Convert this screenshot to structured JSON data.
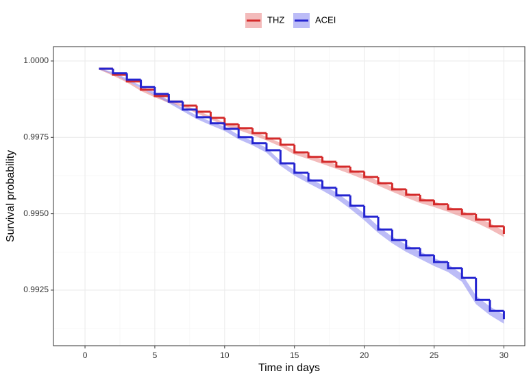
{
  "chart_data": {
    "type": "step",
    "x_label": "Time in days",
    "y_label": "Survival probability",
    "x": [
      1,
      2,
      3,
      4,
      5,
      6,
      7,
      8,
      9,
      10,
      11,
      12,
      13,
      14,
      15,
      16,
      17,
      18,
      19,
      20,
      21,
      22,
      23,
      24,
      25,
      26,
      27,
      28,
      29,
      30
    ],
    "series": [
      {
        "name": "THZ",
        "color": "#d42a2a",
        "band_color": "#e87878",
        "values": [
          0.99975,
          0.99955,
          0.99933,
          0.99906,
          0.99885,
          0.99867,
          0.99854,
          0.99834,
          0.99814,
          0.99793,
          0.9978,
          0.99764,
          0.99746,
          0.99726,
          0.99701,
          0.99686,
          0.9967,
          0.99654,
          0.99638,
          0.9962,
          0.996,
          0.9958,
          0.99562,
          0.99544,
          0.99531,
          0.99515,
          0.99499,
          0.99481,
          0.99459,
          0.99434
        ],
        "upper": [
          0.99978,
          0.99958,
          0.99937,
          0.9991,
          0.99889,
          0.99871,
          0.99859,
          0.99839,
          0.99819,
          0.99798,
          0.99786,
          0.9977,
          0.99752,
          0.99732,
          0.99708,
          0.99693,
          0.99677,
          0.99661,
          0.99646,
          0.99628,
          0.99608,
          0.99588,
          0.99571,
          0.99553,
          0.9954,
          0.99524,
          0.99509,
          0.99491,
          0.99469,
          0.99444
        ],
        "lower": [
          0.99972,
          0.99952,
          0.9993,
          0.99902,
          0.99881,
          0.99863,
          0.9985,
          0.99829,
          0.99809,
          0.99788,
          0.99774,
          0.99758,
          0.9974,
          0.9972,
          0.99694,
          0.99679,
          0.99663,
          0.99647,
          0.9963,
          0.99612,
          0.99592,
          0.99572,
          0.99553,
          0.99535,
          0.99522,
          0.99506,
          0.99489,
          0.99471,
          0.99449,
          0.99424
        ]
      },
      {
        "name": "ACEI",
        "color": "#2424d0",
        "band_color": "#7a7af0",
        "values": [
          0.99975,
          0.9996,
          0.99939,
          0.99915,
          0.99892,
          0.99867,
          0.99841,
          0.99816,
          0.99796,
          0.99778,
          0.99751,
          0.99731,
          0.99708,
          0.99665,
          0.99634,
          0.99609,
          0.99585,
          0.9956,
          0.99526,
          0.9949,
          0.99448,
          0.99414,
          0.99387,
          0.99364,
          0.99342,
          0.99322,
          0.9929,
          0.99218,
          0.99182,
          0.99155
        ],
        "upper": [
          0.99978,
          0.99963,
          0.99943,
          0.99919,
          0.99897,
          0.99872,
          0.99846,
          0.99822,
          0.99802,
          0.99785,
          0.99758,
          0.99738,
          0.99716,
          0.99673,
          0.99643,
          0.99618,
          0.99594,
          0.9957,
          0.99536,
          0.99501,
          0.99459,
          0.99425,
          0.99399,
          0.99376,
          0.99355,
          0.99335,
          0.99303,
          0.99232,
          0.99196,
          0.9917
        ],
        "lower": [
          0.99972,
          0.99957,
          0.99935,
          0.99911,
          0.99887,
          0.99862,
          0.99836,
          0.9981,
          0.9979,
          0.99771,
          0.99744,
          0.99724,
          0.997,
          0.99657,
          0.99625,
          0.996,
          0.99576,
          0.9955,
          0.99516,
          0.99479,
          0.99437,
          0.99403,
          0.99375,
          0.99352,
          0.99329,
          0.99309,
          0.99277,
          0.99204,
          0.99168,
          0.9914
        ]
      }
    ],
    "xlim": [
      -2.26,
      31.5
    ],
    "xticks": [
      0,
      5,
      10,
      15,
      20,
      25,
      30
    ],
    "ylim": [
      0.99068,
      1.00047
    ],
    "yticks": [
      {
        "value": 1,
        "label": "1.0000"
      },
      0.9975,
      {
        "value": 0.995,
        "label": "0.9950"
      },
      0.9925
    ],
    "grid": true,
    "legend": "top"
  }
}
